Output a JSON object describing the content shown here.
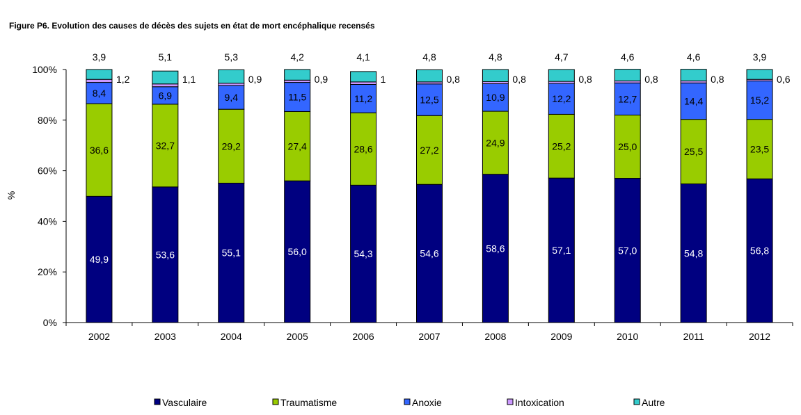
{
  "title": "Figure P6. Evolution des causes de décès des sujets en état de mort encéphalique recensés",
  "chart_data": {
    "type": "bar",
    "stacked": true,
    "percent": true,
    "title": "Figure P6. Evolution des causes de décès des sujets en état de mort encéphalique recensés",
    "xlabel": "",
    "ylabel": "%",
    "ylim": [
      0,
      100
    ],
    "y_ticks": [
      "0%",
      "20%",
      "40%",
      "60%",
      "80%",
      "100%"
    ],
    "grid": false,
    "legend_position": "bottom",
    "categories": [
      "2002",
      "2003",
      "2004",
      "2005",
      "2006",
      "2007",
      "2008",
      "2009",
      "2010",
      "2011",
      "2012"
    ],
    "series": [
      {
        "name": "Vasculaire",
        "color": "#000080",
        "values": [
          49.9,
          53.6,
          55.1,
          56.0,
          54.3,
          54.6,
          58.6,
          57.1,
          57.0,
          54.8,
          56.8
        ],
        "labels": [
          "49,9",
          "53,6",
          "55,1",
          "56,0",
          "54,3",
          "54,6",
          "58,6",
          "57,1",
          "57,0",
          "54,8",
          "56,8"
        ]
      },
      {
        "name": "Traumatisme",
        "color": "#99CC00",
        "values": [
          36.6,
          32.7,
          29.2,
          27.4,
          28.6,
          27.2,
          24.9,
          25.2,
          25.0,
          25.5,
          23.5
        ],
        "labels": [
          "36,6",
          "32,7",
          "29,2",
          "27,4",
          "28,6",
          "27,2",
          "24,9",
          "25,2",
          "25,0",
          "25,5",
          "23,5"
        ]
      },
      {
        "name": "Anoxie",
        "color": "#3366FF",
        "values": [
          8.4,
          6.9,
          9.4,
          11.5,
          11.2,
          12.5,
          10.9,
          12.2,
          12.7,
          14.4,
          15.2
        ],
        "labels": [
          "8,4",
          "6,9",
          "9,4",
          "11,5",
          "11,2",
          "12,5",
          "10,9",
          "12,2",
          "12,7",
          "14,4",
          "15,2"
        ]
      },
      {
        "name": "Intoxication",
        "color": "#CC99FF",
        "values": [
          1.2,
          1.1,
          0.9,
          0.9,
          1,
          0.8,
          0.8,
          0.8,
          0.8,
          0.8,
          0.6
        ],
        "labels": [
          "1,2",
          "1,1",
          "0,9",
          "0,9",
          "1",
          "0,8",
          "0,8",
          "0,8",
          "0,8",
          "0,8",
          "0,6"
        ]
      },
      {
        "name": "Autre",
        "color": "#33CCCC",
        "values": [
          3.9,
          5.1,
          5.3,
          4.2,
          4.1,
          4.8,
          4.8,
          4.7,
          4.6,
          4.6,
          3.9
        ],
        "labels": [
          "3,9",
          "5,1",
          "5,3",
          "4,2",
          "4,1",
          "4,8",
          "4,8",
          "4,7",
          "4,6",
          "4,6",
          "3,9"
        ]
      }
    ]
  }
}
